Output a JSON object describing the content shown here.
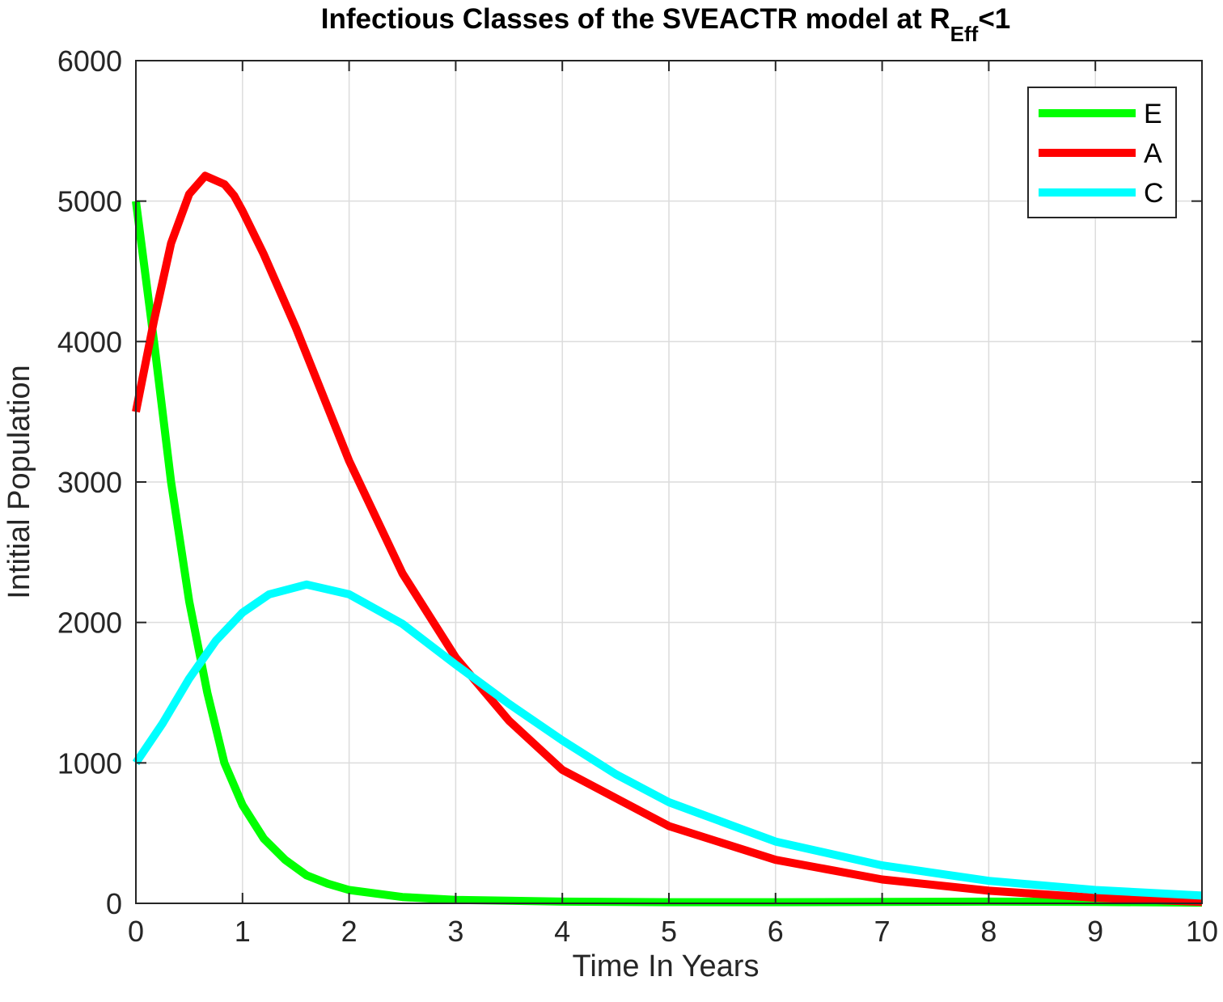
{
  "chart_data": {
    "type": "line",
    "title_main": "Infectious Classes of the SVEACTR model at R",
    "title_sub": "Eff",
    "title_suffix": "<1",
    "xlabel": "Time In Years",
    "ylabel": "Intitial Population",
    "xlim": [
      0,
      10
    ],
    "ylim": [
      0,
      6000
    ],
    "xticks": [
      "0",
      "1",
      "2",
      "3",
      "4",
      "5",
      "6",
      "7",
      "8",
      "9",
      "10"
    ],
    "yticks": [
      "0",
      "1000",
      "2000",
      "3000",
      "4000",
      "5000",
      "6000"
    ],
    "grid": true,
    "legend_position": "top-right",
    "series": [
      {
        "name": "E",
        "color": "#00ff00",
        "x": [
          0,
          0.17,
          0.33,
          0.5,
          0.67,
          0.83,
          1.0,
          1.2,
          1.4,
          1.6,
          1.8,
          2.0,
          2.5,
          3.0,
          4.0,
          5.0,
          6.0,
          7.0,
          8.0,
          9.0,
          10.0
        ],
        "y": [
          5000,
          4000,
          3000,
          2150,
          1500,
          1000,
          700,
          460,
          310,
          200,
          140,
          95,
          45,
          25,
          12,
          8,
          8,
          10,
          12,
          10,
          5
        ]
      },
      {
        "name": "A",
        "color": "#ff0000",
        "x": [
          0,
          0.17,
          0.33,
          0.5,
          0.65,
          0.83,
          0.92,
          1.0,
          1.2,
          1.5,
          2.0,
          2.5,
          3.0,
          3.5,
          4.0,
          5.0,
          6.0,
          7.0,
          8.0,
          9.0,
          10.0
        ],
        "y": [
          3500,
          4150,
          4700,
          5050,
          5180,
          5120,
          5040,
          4930,
          4620,
          4100,
          3150,
          2350,
          1750,
          1300,
          950,
          550,
          310,
          170,
          90,
          40,
          10
        ]
      },
      {
        "name": "C",
        "color": "#00ffff",
        "x": [
          0,
          0.25,
          0.5,
          0.75,
          1.0,
          1.25,
          1.6,
          2.0,
          2.5,
          3.0,
          3.5,
          4.0,
          4.5,
          5.0,
          6.0,
          7.0,
          8.0,
          9.0,
          10.0
        ],
        "y": [
          1000,
          1280,
          1600,
          1870,
          2070,
          2200,
          2270,
          2200,
          1990,
          1700,
          1420,
          1160,
          920,
          720,
          440,
          270,
          160,
          95,
          55
        ]
      }
    ]
  }
}
